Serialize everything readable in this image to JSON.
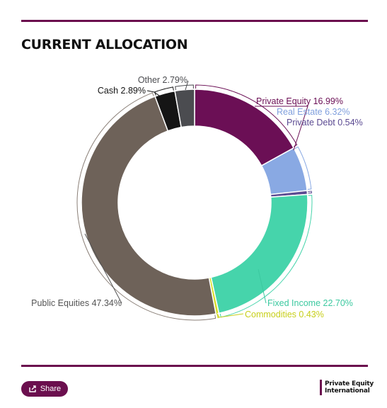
{
  "header": {
    "title": "CURRENT ALLOCATION"
  },
  "chart_data": {
    "type": "pie",
    "donut": true,
    "title": "CURRENT ALLOCATION",
    "slices": [
      {
        "name": "Private Equity",
        "label": "Private Equity 16.99%",
        "value": 16.99,
        "color": "#6b0f55",
        "label_color": "#6b0f55"
      },
      {
        "name": "Real Estate",
        "label": "Real Estate 6.32%",
        "value": 6.32,
        "color": "#89a9e3",
        "label_color": "#7f9fdd"
      },
      {
        "name": "Private Debt",
        "label": "Private Debt 0.54%",
        "value": 0.54,
        "color": "#5b4a92",
        "label_color": "#5b4a92"
      },
      {
        "name": "Fixed Income",
        "label": "Fixed Income 22.70%",
        "value": 22.7,
        "color": "#46d4ab",
        "label_color": "#3cc9a0"
      },
      {
        "name": "Commodities",
        "label": "Commodities 0.43%",
        "value": 0.43,
        "color": "#d7dd28",
        "label_color": "#c7cf1a"
      },
      {
        "name": "Public Equities",
        "label": "Public Equities 47.34%",
        "value": 47.34,
        "color": "#6e6259",
        "label_color": "#555555"
      },
      {
        "name": "Cash",
        "label": "Cash 2.89%",
        "value": 2.89,
        "color": "#151515",
        "label_color": "#151515"
      },
      {
        "name": "Other",
        "label": "Other 2.79%",
        "value": 2.79,
        "color": "#4b4c50",
        "label_color": "#4b4c50"
      }
    ],
    "legend": "none"
  },
  "footer": {
    "share_label": "Share",
    "logo_line1": "Private Equity",
    "logo_line2": "International"
  }
}
